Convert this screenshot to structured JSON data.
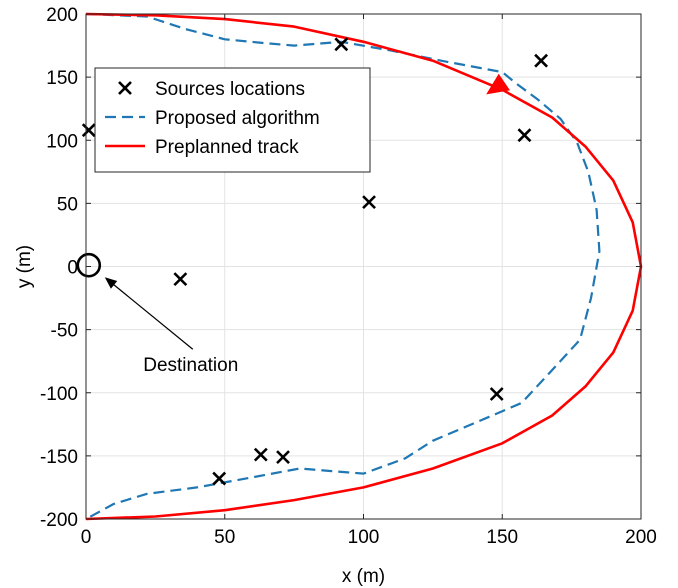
{
  "chart_data": {
    "type": "line",
    "title": "",
    "xlabel": "x (m)",
    "ylabel": "y (m)",
    "xlim": [
      0,
      200
    ],
    "ylim": [
      -200,
      200
    ],
    "xticks": [
      0,
      50,
      100,
      150,
      200
    ],
    "yticks": [
      200,
      150,
      100,
      50,
      0,
      -50,
      -100,
      -150,
      -200
    ],
    "grid": true,
    "legend_position": "top-left",
    "series": [
      {
        "name": "Sources locations",
        "type": "scatter",
        "marker": "x",
        "color": "#000000",
        "points": [
          [
            1,
            108
          ],
          [
            34,
            -10
          ],
          [
            48,
            -168
          ],
          [
            63,
            -149
          ],
          [
            71,
            -151
          ],
          [
            92,
            176
          ],
          [
            102,
            51
          ],
          [
            148,
            -101
          ],
          [
            158,
            104
          ],
          [
            164,
            163
          ]
        ]
      },
      {
        "name": "Proposed algorithm",
        "type": "line",
        "dash": "dashed",
        "color": "#1f77b4",
        "points": [
          [
            0,
            200
          ],
          [
            22,
            198
          ],
          [
            36,
            188
          ],
          [
            50,
            180
          ],
          [
            64,
            177
          ],
          [
            75,
            175
          ],
          [
            92,
            178
          ],
          [
            110,
            171
          ],
          [
            128,
            163
          ],
          [
            150,
            154
          ],
          [
            155,
            145
          ],
          [
            163,
            132
          ],
          [
            171,
            117
          ],
          [
            177,
            98
          ],
          [
            181,
            75
          ],
          [
            184,
            45
          ],
          [
            185,
            12
          ],
          [
            182,
            -25
          ],
          [
            178,
            -58
          ],
          [
            168,
            -82
          ],
          [
            157,
            -108
          ],
          [
            140,
            -124
          ],
          [
            125,
            -138
          ],
          [
            115,
            -152
          ],
          [
            100,
            -164
          ],
          [
            88,
            -162
          ],
          [
            77,
            -160
          ],
          [
            60,
            -167
          ],
          [
            40,
            -175
          ],
          [
            22,
            -180
          ],
          [
            10,
            -188
          ],
          [
            0,
            -200
          ]
        ]
      },
      {
        "name": "Preplanned track",
        "type": "line",
        "dash": "solid",
        "color": "#ff0000",
        "points": [
          [
            0,
            200
          ],
          [
            25,
            199
          ],
          [
            50,
            196
          ],
          [
            75,
            190
          ],
          [
            100,
            178
          ],
          [
            125,
            163
          ],
          [
            150,
            140
          ],
          [
            168,
            118
          ],
          [
            180,
            95
          ],
          [
            190,
            68
          ],
          [
            197,
            35
          ],
          [
            200,
            0
          ],
          [
            197,
            -35
          ],
          [
            190,
            -68
          ],
          [
            180,
            -95
          ],
          [
            168,
            -118
          ],
          [
            150,
            -140
          ],
          [
            125,
            -160
          ],
          [
            100,
            -175
          ],
          [
            75,
            -185
          ],
          [
            50,
            -193
          ],
          [
            25,
            -198
          ],
          [
            0,
            -200
          ]
        ]
      }
    ],
    "annotations": [
      {
        "text": "Destination",
        "point": [
          1,
          1
        ],
        "marker": "circle"
      }
    ],
    "direction_arrow_color": "#ff0000"
  }
}
